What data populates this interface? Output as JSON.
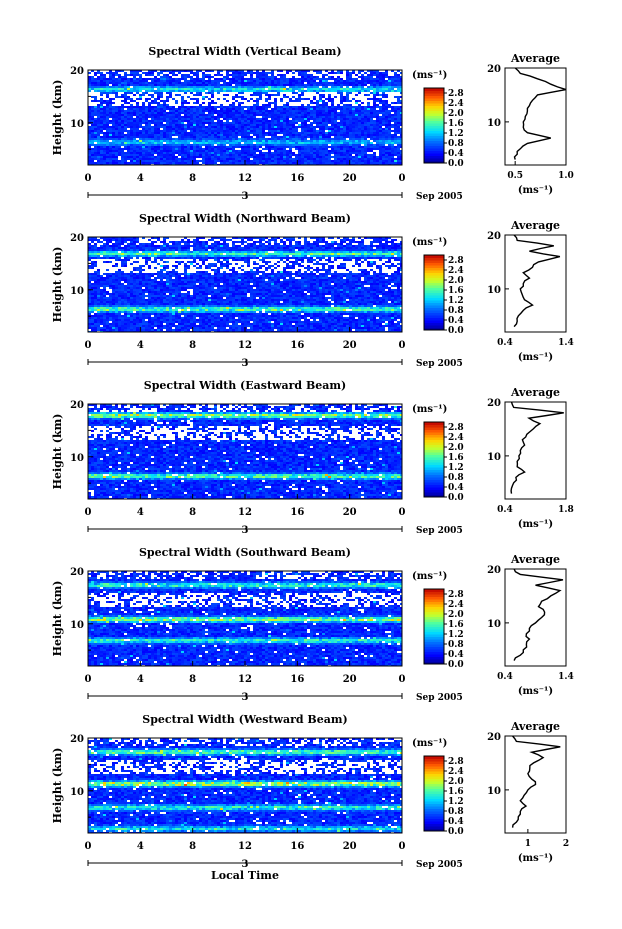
{
  "figure": {
    "xlabel": "Local Time",
    "ylabel": "Height (km)",
    "day_label": "3",
    "month_label": "Sep 2005",
    "cbar_unit": "(ms⁻¹)",
    "avg_title": "Average",
    "avg_unit": "(ms⁻¹)",
    "x_ticks": [
      "0",
      "4",
      "8",
      "12",
      "16",
      "20",
      "0"
    ],
    "y_ticks": [
      "20",
      "10"
    ],
    "cbar_ticks": [
      "0.0",
      "0.4",
      "0.8",
      "1.2",
      "1.6",
      "2.0",
      "2.4",
      "2.8"
    ]
  },
  "chart_data": [
    {
      "type": "heatmap",
      "title": "Spectral Width (Vertical Beam)",
      "xlabel": "Local Time",
      "ylabel": "Height (km)",
      "xlim": [
        0,
        24
      ],
      "ylim": [
        2,
        20
      ],
      "clim": [
        0.0,
        3.0
      ],
      "features": [
        {
          "height_km": 16.5,
          "width": 1.6
        },
        {
          "height_km": 6.5,
          "width": 1.4
        }
      ],
      "profile": {
        "title": "Average",
        "xlabel": "(ms⁻¹)",
        "xlim": [
          0.4,
          1.0
        ],
        "x_ticks": [
          "0.5",
          "1.0"
        ],
        "heights": [
          3,
          4,
          5,
          6,
          7,
          8,
          9,
          10,
          11,
          12,
          13,
          14,
          15,
          16,
          17,
          18,
          19,
          20
        ],
        "values": [
          0.5,
          0.52,
          0.55,
          0.62,
          0.85,
          0.62,
          0.58,
          0.58,
          0.6,
          0.62,
          0.64,
          0.67,
          0.72,
          1.0,
          0.85,
          0.72,
          0.55,
          0.5
        ]
      }
    },
    {
      "type": "heatmap",
      "title": "Spectral Width (Northward Beam)",
      "xlabel": "Local Time",
      "ylabel": "Height (km)",
      "xlim": [
        0,
        24
      ],
      "ylim": [
        2,
        20
      ],
      "clim": [
        0.0,
        3.0
      ],
      "features": [
        {
          "height_km": 17.0,
          "width": 1.8
        },
        {
          "height_km": 6.5,
          "width": 2.0
        }
      ],
      "profile": {
        "title": "Average",
        "xlabel": "(ms⁻¹)",
        "xlim": [
          0.4,
          1.4
        ],
        "x_ticks": [
          "0.4",
          "1.4"
        ],
        "heights": [
          3,
          4,
          5,
          6,
          7,
          8,
          9,
          10,
          11,
          12,
          13,
          14,
          15,
          16,
          17,
          18,
          19,
          20
        ],
        "values": [
          0.55,
          0.6,
          0.62,
          0.7,
          0.85,
          0.72,
          0.68,
          0.65,
          0.7,
          0.8,
          0.7,
          0.85,
          0.95,
          1.3,
          0.8,
          1.2,
          0.6,
          0.55
        ]
      }
    },
    {
      "type": "heatmap",
      "title": "Spectral Width (Eastward Beam)",
      "xlabel": "Local Time",
      "ylabel": "Height (km)",
      "xlim": [
        0,
        24
      ],
      "ylim": [
        2,
        20
      ],
      "clim": [
        0.0,
        3.0
      ],
      "features": [
        {
          "height_km": 18.0,
          "width": 2.2
        },
        {
          "height_km": 6.5,
          "width": 2.0
        }
      ],
      "profile": {
        "title": "Average",
        "xlabel": "(ms⁻¹)",
        "xlim": [
          0.4,
          1.8
        ],
        "x_ticks": [
          "0.4",
          "1.8"
        ],
        "heights": [
          3,
          4,
          5,
          6,
          7,
          8,
          9,
          10,
          11,
          12,
          13,
          14,
          15,
          16,
          17,
          18,
          19,
          20
        ],
        "values": [
          0.55,
          0.55,
          0.6,
          0.65,
          0.85,
          0.68,
          0.68,
          0.72,
          0.75,
          0.85,
          0.8,
          0.9,
          1.05,
          1.2,
          0.95,
          1.75,
          0.6,
          0.55
        ]
      }
    },
    {
      "type": "heatmap",
      "title": "Spectral Width (Southward Beam)",
      "xlabel": "Local Time",
      "ylabel": "Height (km)",
      "xlim": [
        0,
        24
      ],
      "ylim": [
        2,
        20
      ],
      "clim": [
        0.0,
        3.0
      ],
      "features": [
        {
          "height_km": 17.5,
          "width": 1.8
        },
        {
          "height_km": 11.0,
          "width": 2.2
        },
        {
          "height_km": 7.0,
          "width": 1.8
        }
      ],
      "profile": {
        "title": "Average",
        "xlabel": "(ms⁻¹)",
        "xlim": [
          0.4,
          1.4
        ],
        "x_ticks": [
          "0.4",
          "1.4"
        ],
        "heights": [
          3,
          4,
          5,
          6,
          7,
          8,
          9,
          10,
          11,
          12,
          13,
          14,
          15,
          16,
          17,
          18,
          19,
          20
        ],
        "values": [
          0.55,
          0.65,
          0.7,
          0.75,
          0.8,
          0.75,
          0.8,
          0.9,
          1.0,
          1.05,
          0.95,
          1.0,
          1.15,
          1.3,
          0.9,
          1.35,
          0.65,
          0.55
        ]
      }
    },
    {
      "type": "heatmap",
      "title": "Spectral Width (Westward Beam)",
      "xlabel": "Local Time",
      "ylabel": "Height (km)",
      "xlim": [
        0,
        24
      ],
      "ylim": [
        2,
        20
      ],
      "clim": [
        0.0,
        3.0
      ],
      "features": [
        {
          "height_km": 17.5,
          "width": 2.0
        },
        {
          "height_km": 11.5,
          "width": 2.4
        },
        {
          "height_km": 7.0,
          "width": 1.8
        },
        {
          "height_km": 3.0,
          "width": 1.6
        }
      ],
      "profile": {
        "title": "Average",
        "xlabel": "(ms⁻¹)",
        "xlim": [
          0.4,
          2.0
        ],
        "x_ticks": [
          "1",
          "2"
        ],
        "heights": [
          3,
          4,
          5,
          6,
          7,
          8,
          9,
          10,
          11,
          12,
          13,
          14,
          15,
          16,
          17,
          18,
          19,
          20
        ],
        "values": [
          0.6,
          0.7,
          0.75,
          0.8,
          0.95,
          0.8,
          0.9,
          1.0,
          1.2,
          1.1,
          1.0,
          1.05,
          1.15,
          1.4,
          1.1,
          1.85,
          0.7,
          0.6
        ]
      }
    }
  ]
}
